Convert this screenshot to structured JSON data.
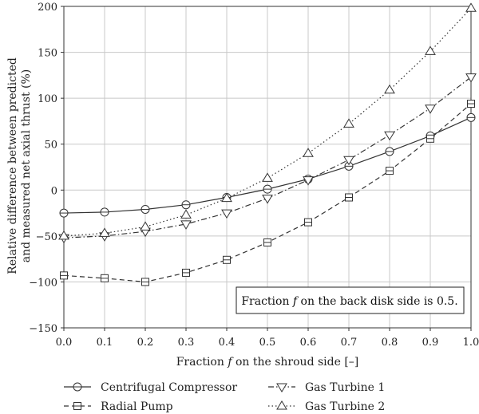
{
  "chart_data": {
    "type": "line",
    "xlabel_prefix": "Fraction ",
    "xlabel_var": "f",
    "xlabel_suffix": " on the shroud side [–]",
    "ylabel_line1": "Relative difference between predicted",
    "ylabel_line2": "and measured net axial thrust (%)",
    "xlim": [
      0.0,
      1.0
    ],
    "ylim": [
      -150,
      200
    ],
    "grid": true,
    "xticks": [
      "0.0",
      "0.1",
      "0.2",
      "0.3",
      "0.4",
      "0.5",
      "0.6",
      "0.7",
      "0.8",
      "0.9",
      "1.0"
    ],
    "yticks": [
      "200",
      "150",
      "100",
      "50",
      "0",
      "−50",
      "−100",
      "−150"
    ],
    "x": [
      0.0,
      0.1,
      0.2,
      0.3,
      0.4,
      0.5,
      0.6,
      0.7,
      0.8,
      0.9,
      1.0
    ],
    "series": [
      {
        "name": "Centrifugal Compressor",
        "marker": "circle",
        "dash": "solid",
        "values": [
          -25,
          -24,
          -21,
          -16,
          -8,
          1,
          12,
          26,
          42,
          59,
          79
        ]
      },
      {
        "name": "Radial Pump",
        "marker": "square",
        "dash": "dashed",
        "values": [
          -93,
          -96,
          -100,
          -90,
          -76,
          -57,
          -35,
          -8,
          21,
          56,
          94
        ]
      },
      {
        "name": "Gas Turbine 1",
        "marker": "triangle-down",
        "dash": "dashdot",
        "values": [
          -52,
          -50,
          -45,
          -37,
          -25,
          -9,
          11,
          33,
          60,
          89,
          123
        ]
      },
      {
        "name": "Gas Turbine 2",
        "marker": "triangle-up",
        "dash": "dotted",
        "values": [
          -50,
          -47,
          -40,
          -27,
          -9,
          13,
          40,
          72,
          109,
          151,
          198
        ]
      }
    ],
    "annotation_prefix": "Fraction ",
    "annotation_var": "f",
    "annotation_suffix": " on the back disk side is 0.5.",
    "legend_position": "bottom"
  }
}
